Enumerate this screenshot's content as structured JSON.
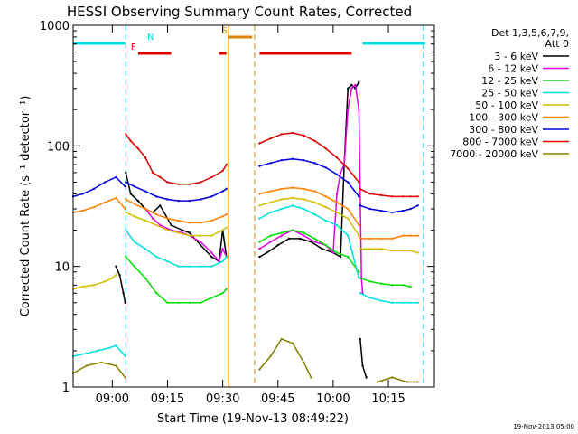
{
  "chart_data": {
    "type": "line",
    "title": "HESSI Observing Summary Count Rates, Corrected",
    "xlabel": "Start Time (19-Nov-13 08:49:22)",
    "ylabel": "Corrected Count Rate (s⁻¹ detector⁻¹)",
    "yscale": "log",
    "ylim": [
      1,
      1000
    ],
    "xlim": [
      "08:49:22",
      "10:27:30"
    ],
    "x_ticks": [
      "09:00",
      "09:15",
      "09:30",
      "09:45",
      "10:00",
      "10:15"
    ],
    "y_ticks": [
      "1",
      "10",
      "100",
      "1000"
    ],
    "legend_header": [
      "Det 1,3,5,6,7,9,",
      "Att 0"
    ],
    "legend_position": "right",
    "footer_date": "19-Nov-2013 05:00",
    "flags": [
      {
        "label": "N",
        "color": "#00e0e0",
        "intervals": [
          [
            "08:49:22",
            "09:03:30"
          ],
          [
            "10:08:00",
            "10:25:00"
          ]
        ]
      },
      {
        "label": "F",
        "color": "#e00000",
        "intervals": [
          [
            "09:07:00",
            "09:16:00"
          ],
          [
            "09:29:00",
            "09:31:00"
          ],
          [
            "09:40:00",
            "10:05:00"
          ]
        ]
      },
      {
        "label": "S",
        "color": "#e08000",
        "intervals": [
          [
            "09:31:40",
            "09:38:00"
          ]
        ]
      }
    ],
    "gaps": [
      {
        "start": "09:31:30",
        "end": "09:38:40",
        "color": "#e08000"
      }
    ],
    "vlines": [
      {
        "time": "09:03:40",
        "color": "#00e0e0"
      },
      {
        "time": "09:38:40",
        "color": "#e08000"
      },
      {
        "time": "10:24:30",
        "color": "#00e0e0"
      }
    ],
    "series": [
      {
        "name": "3 - 6 keV",
        "color": "#000000",
        "segments": [
          {
            "x": [
              "09:01",
              "09:02",
              "09:03",
              "09:03:30"
            ],
            "y": [
              10,
              8.5,
              6,
              5
            ]
          },
          {
            "x": [
              "09:03:40",
              "09:05",
              "09:07",
              "09:09",
              "09:11",
              "09:13",
              "09:16",
              "09:19",
              "09:21",
              "09:24",
              "09:27",
              "09:29",
              "09:30",
              "09:31"
            ],
            "y": [
              60,
              40,
              35,
              30,
              28,
              32,
              22,
              20,
              19,
              15,
              12,
              11,
              20,
              12
            ]
          },
          {
            "x": [
              "09:40",
              "09:42",
              "09:45",
              "09:48",
              "09:51",
              "09:54",
              "09:57",
              "10:00",
              "10:02",
              "10:03",
              "10:04",
              "10:05",
              "10:06",
              "10:07"
            ],
            "y": [
              12,
              13,
              15,
              17,
              17,
              16,
              14,
              13,
              12,
              70,
              300,
              320,
              300,
              340
            ]
          },
          {
            "x": [
              "10:07:20",
              "10:08",
              "10:09"
            ],
            "y": [
              2.5,
              1.5,
              1.2
            ]
          }
        ]
      },
      {
        "name": "6 - 12 keV",
        "color": "#e000e0",
        "segments": [
          {
            "x": [
              "09:09",
              "09:11",
              "09:13",
              "09:16",
              "09:19",
              "09:21",
              "09:24",
              "09:27",
              "09:29",
              "09:30",
              "09:31"
            ],
            "y": [
              30,
              25,
              22,
              20,
              19,
              18,
              16,
              13,
              11,
              14,
              12
            ]
          },
          {
            "x": [
              "09:40",
              "09:43",
              "09:46",
              "09:49",
              "09:52",
              "09:55",
              "09:58",
              "10:00",
              "10:01",
              "10:02",
              "10:03",
              "10:04",
              "10:05",
              "10:06",
              "10:07",
              "10:07:40",
              "10:08"
            ],
            "y": [
              14,
              16,
              18,
              20,
              18,
              16,
              15,
              13,
              40,
              60,
              70,
              200,
              300,
              320,
              200,
              8,
              6
            ]
          }
        ]
      },
      {
        "name": "12 - 25 keV",
        "color": "#00e000",
        "segments": [
          {
            "x": [
              "09:03:40",
              "09:06",
              "09:09",
              "09:12",
              "09:15",
              "09:18",
              "09:21",
              "09:24",
              "09:27",
              "09:30",
              "09:31"
            ],
            "y": [
              12,
              10,
              8,
              6,
              5,
              5,
              5,
              5,
              5.5,
              6,
              6.5
            ]
          },
          {
            "x": [
              "09:40",
              "09:43",
              "09:46",
              "09:49",
              "09:52",
              "09:55",
              "09:58",
              "10:01",
              "10:04",
              "10:07"
            ],
            "y": [
              16,
              18,
              19,
              20,
              19,
              17,
              15,
              13,
              12,
              9
            ]
          },
          {
            "x": [
              "10:07:20",
              "10:10",
              "10:13",
              "10:16",
              "10:19",
              "10:21"
            ],
            "y": [
              8,
              7.5,
              7.2,
              7,
              7,
              6.8
            ]
          }
        ]
      },
      {
        "name": "25 - 50 keV",
        "color": "#00e0e0",
        "segments": [
          {
            "x": [
              "08:49:22",
              "08:53",
              "08:56",
              "08:59",
              "09:01",
              "09:03:30"
            ],
            "y": [
              1.8,
              1.9,
              2,
              2.1,
              2.2,
              1.8
            ]
          },
          {
            "x": [
              "09:03:40",
              "09:06",
              "09:09",
              "09:12",
              "09:15",
              "09:18",
              "09:21",
              "09:24",
              "09:27",
              "09:30",
              "09:31"
            ],
            "y": [
              20,
              16,
              14,
              12,
              11,
              10,
              10,
              10,
              10,
              11,
              12
            ]
          },
          {
            "x": [
              "09:40",
              "09:43",
              "09:46",
              "09:49",
              "09:52",
              "09:55",
              "09:58",
              "10:01",
              "10:04",
              "10:07"
            ],
            "y": [
              25,
              28,
              30,
              32,
              30,
              27,
              24,
              22,
              18,
              8
            ]
          },
          {
            "x": [
              "10:07:20",
              "10:10",
              "10:13",
              "10:16",
              "10:19",
              "10:21",
              "10:23"
            ],
            "y": [
              6,
              5.5,
              5.2,
              5,
              5,
              5,
              5
            ]
          }
        ]
      },
      {
        "name": "50 - 100 keV",
        "color": "#d0c000",
        "segments": [
          {
            "x": [
              "08:49:22",
              "08:52",
              "08:55",
              "08:58",
              "09:00",
              "09:01"
            ],
            "y": [
              6.5,
              6.8,
              7,
              7.5,
              8,
              8.5
            ]
          },
          {
            "x": [
              "09:03:40",
              "09:06",
              "09:09",
              "09:12",
              "09:15",
              "09:18",
              "09:21",
              "09:24",
              "09:27",
              "09:30",
              "09:31"
            ],
            "y": [
              28,
              26,
              24,
              22,
              20,
              19,
              18,
              18,
              18,
              20,
              21
            ]
          },
          {
            "x": [
              "09:40",
              "09:43",
              "09:46",
              "09:49",
              "09:52",
              "09:55",
              "09:58",
              "10:01",
              "10:04",
              "10:07"
            ],
            "y": [
              32,
              34,
              36,
              37,
              36,
              34,
              31,
              28,
              25,
              18
            ]
          },
          {
            "x": [
              "10:07:20",
              "10:10",
              "10:13",
              "10:16",
              "10:19",
              "10:21",
              "10:23"
            ],
            "y": [
              14,
              14,
              14,
              13.5,
              13.5,
              13.5,
              13
            ]
          }
        ]
      },
      {
        "name": "100 - 300 keV",
        "color": "#ff8000",
        "segments": [
          {
            "x": [
              "08:49:22",
              "08:52",
              "08:55",
              "08:58",
              "09:01",
              "09:03:30"
            ],
            "y": [
              28,
              29,
              31,
              34,
              37,
              30
            ]
          },
          {
            "x": [
              "09:03:40",
              "09:06",
              "09:09",
              "09:12",
              "09:15",
              "09:18",
              "09:21",
              "09:24",
              "09:27",
              "09:30",
              "09:31"
            ],
            "y": [
              36,
              33,
              30,
              27,
              25,
              24,
              23,
              23,
              24,
              26,
              27
            ]
          },
          {
            "x": [
              "09:40",
              "09:43",
              "09:46",
              "09:49",
              "09:52",
              "09:55",
              "09:58",
              "10:01",
              "10:04",
              "10:07"
            ],
            "y": [
              40,
              42,
              44,
              45,
              44,
              42,
              38,
              34,
              30,
              22
            ]
          },
          {
            "x": [
              "10:07:20",
              "10:10",
              "10:13",
              "10:16",
              "10:19",
              "10:21",
              "10:23"
            ],
            "y": [
              17,
              17,
              17,
              17,
              18,
              18,
              18
            ]
          }
        ]
      },
      {
        "name": "300 - 800 keV",
        "color": "#0000e0",
        "segments": [
          {
            "x": [
              "08:49:22",
              "08:52",
              "08:55",
              "08:58",
              "09:01",
              "09:03:30"
            ],
            "y": [
              38,
              40,
              44,
              50,
              55,
              46
            ]
          },
          {
            "x": [
              "09:03:40",
              "09:06",
              "09:09",
              "09:12",
              "09:15",
              "09:18",
              "09:21",
              "09:24",
              "09:27",
              "09:30",
              "09:31"
            ],
            "y": [
              50,
              46,
              42,
              38,
              36,
              35,
              35,
              36,
              38,
              42,
              44
            ]
          },
          {
            "x": [
              "09:40",
              "09:43",
              "09:46",
              "09:49",
              "09:52",
              "09:55",
              "09:58",
              "10:01",
              "10:04",
              "10:07"
            ],
            "y": [
              68,
              72,
              76,
              78,
              76,
              72,
              66,
              58,
              50,
              38
            ]
          },
          {
            "x": [
              "10:07:20",
              "10:10",
              "10:13",
              "10:16",
              "10:19",
              "10:21",
              "10:23"
            ],
            "y": [
              32,
              30,
              29,
              28,
              29,
              30,
              32
            ]
          }
        ]
      },
      {
        "name": "800 - 7000 keV",
        "color": "#e00000",
        "segments": [
          {
            "x": [
              "09:03:40",
              "09:05",
              "09:07",
              "09:09",
              "09:11",
              "09:13",
              "09:15",
              "09:18",
              "09:21",
              "09:24",
              "09:27",
              "09:30",
              "09:31"
            ],
            "y": [
              125,
              110,
              95,
              80,
              60,
              55,
              50,
              48,
              48,
              50,
              55,
              62,
              70
            ]
          },
          {
            "x": [
              "09:40",
              "09:43",
              "09:46",
              "09:49",
              "09:52",
              "09:55",
              "09:58",
              "10:01",
              "10:04",
              "10:07"
            ],
            "y": [
              105,
              115,
              125,
              128,
              122,
              110,
              95,
              80,
              65,
              50
            ]
          },
          {
            "x": [
              "10:07:20",
              "10:10",
              "10:13",
              "10:16",
              "10:19",
              "10:21",
              "10:23"
            ],
            "y": [
              44,
              40,
              39,
              38,
              38,
              38,
              38
            ]
          }
        ]
      },
      {
        "name": "7000 - 20000 keV",
        "color": "#808000",
        "segments": [
          {
            "x": [
              "08:49:22",
              "08:53",
              "08:57",
              "09:01",
              "09:03:30"
            ],
            "y": [
              1.3,
              1.5,
              1.6,
              1.5,
              1.2
            ]
          },
          {
            "x": [
              "09:40",
              "09:43",
              "09:46",
              "09:49",
              "09:52",
              "09:54"
            ],
            "y": [
              1.4,
              1.8,
              2.5,
              2.3,
              1.6,
              1.2
            ]
          },
          {
            "x": [
              "10:12",
              "10:16",
              "10:20",
              "10:23"
            ],
            "y": [
              1.1,
              1.2,
              1.1,
              1.1
            ]
          }
        ]
      }
    ]
  }
}
